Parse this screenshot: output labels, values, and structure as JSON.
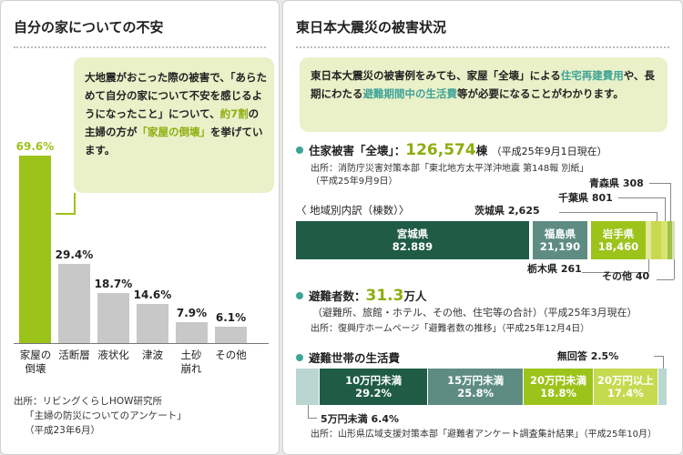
{
  "left": {
    "title": "自分の家についての不安",
    "callout": {
      "pre": "大地震がおこった際の被害で、「あらためて自分の家について不安を感じるようになったこと」について、",
      "hl1": "約7割",
      "mid": "の主婦の方が",
      "hl2": "「家屋の倒壊」",
      "post": "を挙げています。"
    },
    "source": [
      "出所：リビングくらしHOW研究所",
      "「主婦の防災についてのアンケート」",
      "（平成23年6月）"
    ]
  },
  "right": {
    "title": "東日本大震災の被害状況",
    "intro": {
      "p1": "東日本大震災の被害例をみても、家屋「全壊」による",
      "hl1": "住宅再建費用",
      "p2": "や、長期にわたる",
      "hl2": "避難期間中の生活費",
      "p3": "等が必要になることがわかります。"
    },
    "housing": {
      "heading": "住家被害「全壊」：",
      "value": "126,574",
      "unit": "棟",
      "asof": "（平成25年9月1日現在）",
      "source1": "出所：消防庁災害対策本部「東北地方太平洋沖地震 第148報 別紙」",
      "source2": "（平成25年9月9日）",
      "breakdown_title": "〈 地域別内訳（棟数）〉"
    },
    "evacuees": {
      "heading": "避難者数：",
      "value": "31.3",
      "unit": "万人",
      "desc": "（避難所、旅館・ホテル、その他、住宅等の合計）（平成25年3月現在）",
      "source": "出所：復興庁ホームページ「避難者数の推移」（平成25年12月4日）"
    },
    "living": {
      "heading": "避難世帯の生活費",
      "source": "出所：山形県広域支援対策本部「避難者アンケート調査集計結果」（平成25年10月）"
    }
  },
  "colors": {
    "green": "#9cc319",
    "gray": "#c8c8c8",
    "dark_green": "#1f5b45",
    "teal_gray": "#5e8c83",
    "light_green": "#c5da4e",
    "pale": "#b9d7d0"
  },
  "chart_data": [
    {
      "type": "bar",
      "categories": [
        "家屋の倒壊",
        "活断層",
        "液状化",
        "津波",
        "土砂崩れ",
        "その他"
      ],
      "values": [
        69.6,
        29.4,
        18.7,
        14.6,
        7.9,
        6.1
      ],
      "value_labels": [
        "69.6%",
        "29.4%",
        "18.7%",
        "14.6%",
        "7.9%",
        "6.1%"
      ],
      "ylim": [
        0,
        69.6
      ]
    },
    {
      "type": "bar",
      "orientation": "stacked-horizontal",
      "categories": [
        "宮城県",
        "福島県",
        "岩手県",
        "栃木県",
        "茨城県",
        "千葉県",
        "青森県",
        "その他"
      ],
      "values": [
        82889,
        21190,
        18460,
        261,
        2625,
        801,
        308,
        40
      ],
      "value_labels": [
        "82.889",
        "21,190",
        "18,460",
        "261",
        "2,625",
        "801",
        "308",
        "40"
      ]
    },
    {
      "type": "bar",
      "orientation": "stacked-horizontal",
      "categories": [
        "5万円未満",
        "10万円未満",
        "15万円未満",
        "20万円未満",
        "20万円以上",
        "無回答"
      ],
      "values": [
        6.4,
        29.2,
        25.8,
        18.8,
        17.4,
        2.5
      ],
      "value_labels": [
        "6.4%",
        "29.2%",
        "25.8%",
        "18.8%",
        "17.4%",
        "2.5%"
      ]
    }
  ]
}
